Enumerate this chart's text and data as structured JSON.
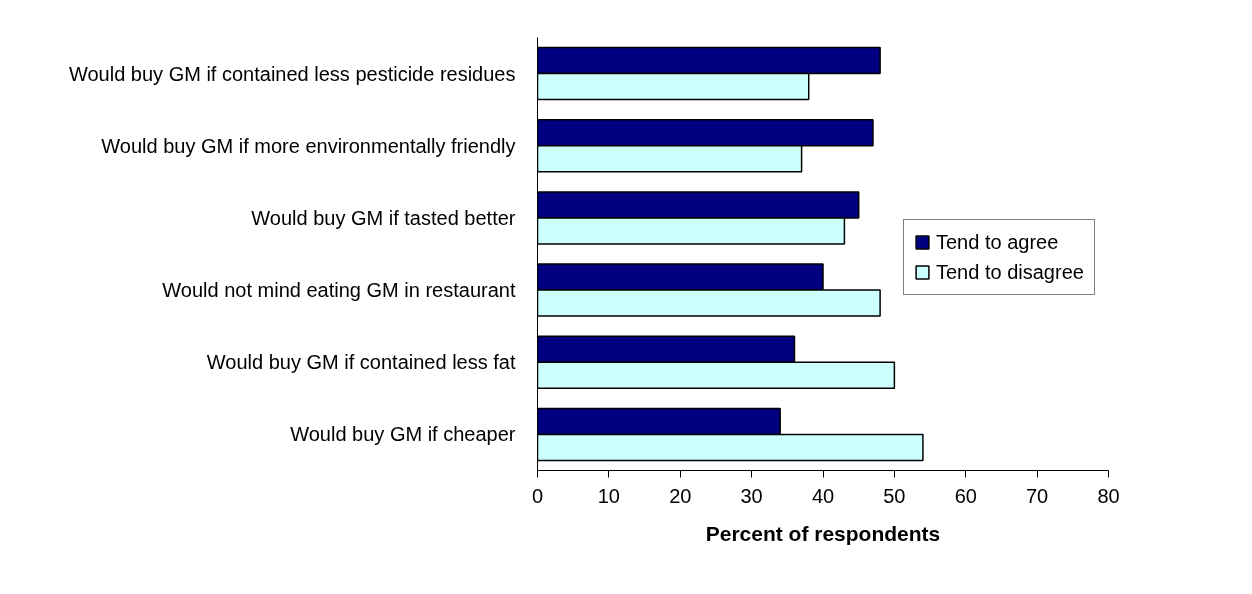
{
  "chart_data": {
    "type": "bar",
    "orientation": "horizontal",
    "categories": [
      "Would buy GM if contained less pesticide residues",
      "Would buy GM if more environmentally friendly",
      "Would buy GM if tasted better",
      "Would not mind eating GM in restaurant",
      "Would buy GM if contained less fat",
      "Would buy GM if cheaper"
    ],
    "series": [
      {
        "name": "Tend to agree",
        "color": "#000080",
        "values": [
          48,
          47,
          45,
          40,
          36,
          34
        ]
      },
      {
        "name": "Tend to disagree",
        "color": "#ccffff",
        "values": [
          38,
          37,
          43,
          48,
          50,
          54
        ]
      }
    ],
    "xlabel": "Percent of respondents",
    "xlim": [
      0,
      80
    ],
    "xticks": [
      0,
      10,
      20,
      30,
      40,
      50,
      60,
      70,
      80
    ],
    "legend": "right",
    "grid": false
  }
}
